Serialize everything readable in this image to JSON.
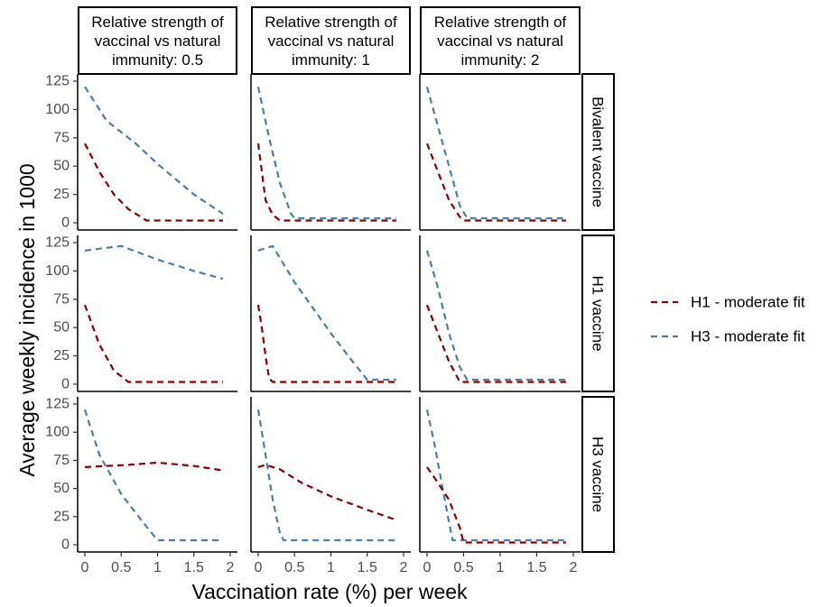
{
  "chart_data": {
    "type": "line",
    "xlabel": "Vaccination rate (%) per week",
    "ylabel": "Average weekly incidence in 1000",
    "xlim": [
      0,
      2
    ],
    "ylim": [
      0,
      125
    ],
    "xticks": [
      "0",
      "0.5",
      "1",
      "1.5",
      "2"
    ],
    "yticks": [
      "0",
      "25",
      "50",
      "75",
      "100",
      "125"
    ],
    "grid": false,
    "legend_position": "right",
    "column_strips": [
      [
        "Relative strength of",
        "vaccinal vs natural",
        "immunity: 0.5"
      ],
      [
        "Relative strength of",
        "vaccinal vs natural",
        "immunity: 1"
      ],
      [
        "Relative strength of",
        "vaccinal vs natural",
        "immunity: 2"
      ]
    ],
    "row_strips": [
      "Bivalent vaccine",
      "H1 vaccine",
      "H3 vaccine"
    ],
    "legend": [
      {
        "name": "H1 - moderate fit",
        "color": "#8b0000"
      },
      {
        "name": "H3 - moderate fit",
        "color": "#4a7fad"
      }
    ],
    "panels": [
      {
        "row": 0,
        "col": 0,
        "series": [
          {
            "name": "H1 - moderate fit",
            "x": [
              0,
              0.2,
              0.4,
              0.6,
              0.85,
              1.9
            ],
            "y": [
              70,
              45,
              25,
              12,
              2,
              2
            ]
          },
          {
            "name": "H3 - moderate fit",
            "x": [
              0,
              0.3,
              0.7,
              1.0,
              1.5,
              1.9
            ],
            "y": [
              120,
              90,
              70,
              52,
              25,
              8
            ]
          }
        ]
      },
      {
        "row": 0,
        "col": 1,
        "series": [
          {
            "name": "H1 - moderate fit",
            "x": [
              0,
              0.1,
              0.2,
              0.3,
              1.9
            ],
            "y": [
              70,
              20,
              7,
              2,
              2
            ]
          },
          {
            "name": "H3 - moderate fit",
            "x": [
              0,
              0.15,
              0.3,
              0.45,
              0.5,
              1.9
            ],
            "y": [
              120,
              75,
              35,
              8,
              4,
              4
            ]
          }
        ]
      },
      {
        "row": 0,
        "col": 2,
        "series": [
          {
            "name": "H1 - moderate fit",
            "x": [
              0,
              0.15,
              0.3,
              0.45,
              0.5,
              1.9
            ],
            "y": [
              70,
              45,
              20,
              5,
              2,
              2
            ]
          },
          {
            "name": "H3 - moderate fit",
            "x": [
              0,
              0.15,
              0.3,
              0.45,
              0.55,
              1.9
            ],
            "y": [
              120,
              85,
              50,
              15,
              4,
              4
            ]
          }
        ]
      },
      {
        "row": 1,
        "col": 0,
        "series": [
          {
            "name": "H1 - moderate fit",
            "x": [
              0,
              0.2,
              0.4,
              0.6,
              1.9
            ],
            "y": [
              70,
              35,
              12,
              2,
              2
            ]
          },
          {
            "name": "H3 - moderate fit",
            "x": [
              0,
              0.25,
              0.5,
              1.0,
              1.5,
              1.9
            ],
            "y": [
              118,
              120,
              122,
              110,
              100,
              93
            ]
          }
        ]
      },
      {
        "row": 1,
        "col": 1,
        "series": [
          {
            "name": "H1 - moderate fit",
            "x": [
              0,
              0.05,
              0.1,
              0.15,
              0.2,
              1.9
            ],
            "y": [
              70,
              50,
              25,
              5,
              2,
              2
            ]
          },
          {
            "name": "H3 - moderate fit",
            "x": [
              0,
              0.2,
              0.5,
              1.0,
              1.3,
              1.5,
              1.9
            ],
            "y": [
              118,
              122,
              90,
              45,
              20,
              4,
              4
            ]
          }
        ]
      },
      {
        "row": 1,
        "col": 2,
        "series": [
          {
            "name": "H1 - moderate fit",
            "x": [
              0,
              0.15,
              0.3,
              0.45,
              1.9
            ],
            "y": [
              70,
              45,
              20,
              2,
              2
            ]
          },
          {
            "name": "H3 - moderate fit",
            "x": [
              0,
              0.15,
              0.3,
              0.45,
              0.55,
              1.9
            ],
            "y": [
              118,
              85,
              45,
              15,
              4,
              4
            ]
          }
        ]
      },
      {
        "row": 2,
        "col": 0,
        "series": [
          {
            "name": "H1 - moderate fit",
            "x": [
              0,
              0.3,
              0.6,
              1.0,
              1.5,
              1.9
            ],
            "y": [
              69,
              70,
              71,
              73,
              70,
              66
            ]
          },
          {
            "name": "H3 - moderate fit",
            "x": [
              0,
              0.2,
              0.5,
              0.8,
              1.0,
              1.9
            ],
            "y": [
              120,
              80,
              45,
              20,
              4,
              4
            ]
          }
        ]
      },
      {
        "row": 2,
        "col": 1,
        "series": [
          {
            "name": "H1 - moderate fit",
            "x": [
              0,
              0.1,
              0.3,
              0.6,
              1.0,
              1.5,
              1.9
            ],
            "y": [
              69,
              71,
              67,
              55,
              43,
              31,
              22
            ]
          },
          {
            "name": "H3 - moderate fit",
            "x": [
              0,
              0.1,
              0.2,
              0.3,
              0.35,
              1.9
            ],
            "y": [
              120,
              80,
              40,
              10,
              4,
              4
            ]
          }
        ]
      },
      {
        "row": 2,
        "col": 2,
        "series": [
          {
            "name": "H1 - moderate fit",
            "x": [
              0,
              0.15,
              0.3,
              0.45,
              0.5,
              1.9
            ],
            "y": [
              69,
              55,
              40,
              15,
              2,
              2
            ]
          },
          {
            "name": "H3 - moderate fit",
            "x": [
              0,
              0.1,
              0.2,
              0.3,
              0.35,
              1.9
            ],
            "y": [
              120,
              90,
              55,
              20,
              4,
              4
            ]
          }
        ]
      }
    ]
  }
}
